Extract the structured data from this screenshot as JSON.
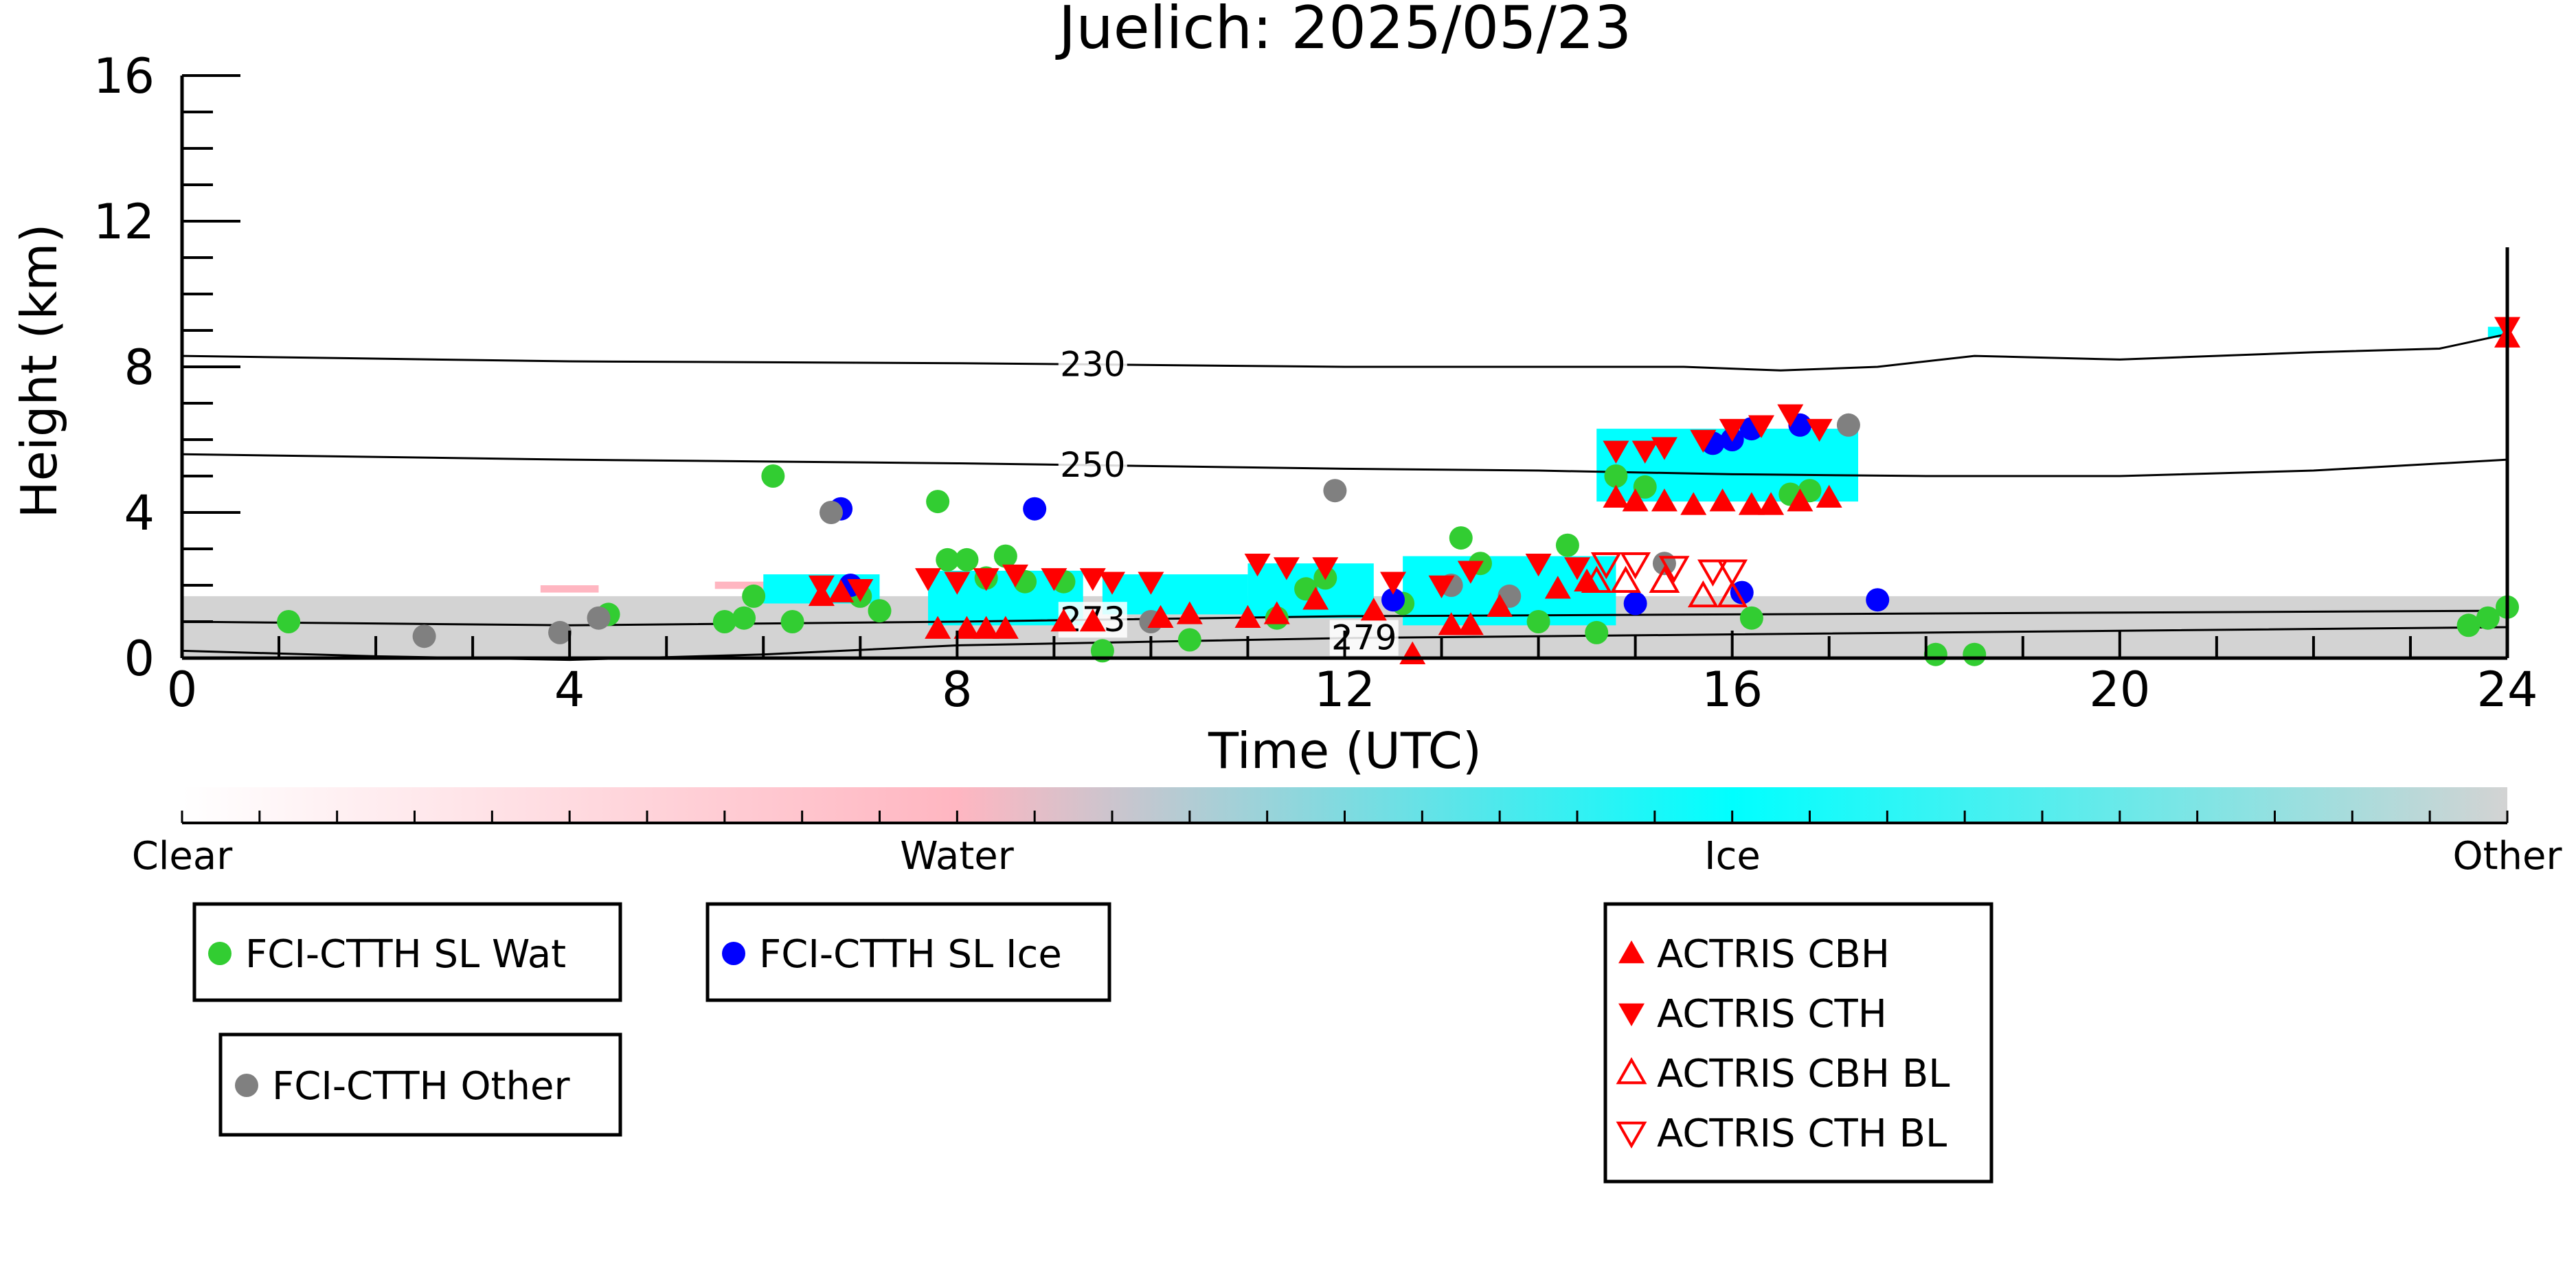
{
  "chart_data": {
    "type": "scatter",
    "title": "Juelich: 2025/05/23",
    "xlabel": "Time (UTC)",
    "ylabel": "Height (km)",
    "xlim": [
      0,
      24
    ],
    "ylim": [
      0,
      16
    ],
    "xticks": [
      0,
      4,
      8,
      12,
      16,
      20,
      24
    ],
    "yticks": [
      0,
      4,
      8,
      12,
      16
    ],
    "background_cloud_phase": {
      "other_regions": [
        [
          0,
          0,
          24,
          1.7
        ]
      ],
      "water_regions": [
        [
          3.7,
          1.8,
          4.3,
          2.0
        ],
        [
          5.5,
          1.9,
          6.2,
          2.1
        ],
        [
          13.9,
          2.2,
          14.8,
          2.6
        ]
      ],
      "ice_regions": [
        [
          6.0,
          1.5,
          7.2,
          2.3
        ],
        [
          7.7,
          0.9,
          9.3,
          2.4
        ],
        [
          9.5,
          1.2,
          11.0,
          2.3
        ],
        [
          11.0,
          1.1,
          12.3,
          2.6
        ],
        [
          12.6,
          0.9,
          14.8,
          2.8
        ],
        [
          14.6,
          4.3,
          17.3,
          6.3
        ],
        [
          23.8,
          8.8,
          24.0,
          9.1
        ]
      ]
    },
    "temperature_contours": [
      {
        "label": "230",
        "x": [
          0,
          4,
          8,
          12,
          14,
          15.5,
          16.5,
          17.5,
          18.5,
          20,
          22,
          23.3,
          24
        ],
        "y": [
          8.3,
          8.15,
          8.1,
          8.0,
          8.0,
          8.0,
          7.9,
          8.0,
          8.3,
          8.2,
          8.4,
          8.5,
          8.9
        ],
        "label_x": 9.4
      },
      {
        "label": "250",
        "x": [
          0,
          4,
          8,
          12,
          14,
          16,
          18,
          20,
          22,
          24
        ],
        "y": [
          5.6,
          5.45,
          5.35,
          5.2,
          5.15,
          5.05,
          5.0,
          5.0,
          5.15,
          5.45
        ],
        "label_x": 9.4
      },
      {
        "label": "273",
        "x": [
          0,
          4,
          8,
          12,
          16,
          20,
          24
        ],
        "y": [
          1.0,
          0.9,
          1.0,
          1.15,
          1.2,
          1.25,
          1.3
        ],
        "label_x": 9.4
      },
      {
        "label": "279",
        "x": [
          0,
          2,
          4,
          6,
          8,
          10,
          12,
          16,
          20,
          24
        ],
        "y": [
          0.2,
          0.05,
          -0.05,
          0.1,
          0.35,
          0.45,
          0.55,
          0.65,
          0.75,
          0.85
        ],
        "label_x": 12.2
      }
    ],
    "colorbar": {
      "labels": [
        "Clear",
        "Water",
        "Ice",
        "Other"
      ],
      "label_positions": [
        0,
        8,
        16,
        24
      ],
      "colors": [
        "#ffffff",
        "#ffb6c1",
        "#00ffff",
        "#d3d3d3"
      ]
    },
    "series": [
      {
        "name": "FCI-CTTH SL Wat",
        "marker": "circle",
        "color": "#32cd32",
        "x": [
          1.1,
          4.4,
          5.6,
          5.8,
          5.9,
          6.1,
          6.3,
          7.0,
          7.2,
          7.8,
          7.9,
          8.1,
          8.3,
          8.5,
          8.7,
          9.1,
          9.5,
          10.4,
          11.3,
          11.6,
          11.8,
          12.6,
          13.2,
          13.4,
          14.0,
          14.3,
          14.6,
          14.8,
          15.1,
          15.8,
          16.2,
          16.6,
          16.8,
          18.1,
          18.5,
          23.6,
          23.8,
          24.0
        ],
        "y": [
          1.0,
          1.2,
          1.0,
          1.1,
          1.7,
          5.0,
          1.0,
          1.7,
          1.3,
          4.3,
          2.7,
          2.7,
          2.2,
          2.8,
          2.1,
          2.1,
          0.2,
          0.5,
          1.1,
          1.9,
          2.2,
          1.5,
          3.3,
          2.6,
          1.0,
          3.1,
          0.7,
          5.0,
          4.7,
          5.9,
          1.1,
          4.5,
          4.6,
          0.1,
          0.1,
          0.9,
          1.1,
          1.4
        ]
      },
      {
        "name": "FCI-CTTH SL Ice",
        "marker": "circle",
        "color": "#0000ff",
        "x": [
          6.8,
          6.9,
          8.8,
          12.5,
          15.0,
          15.8,
          16.0,
          16.2,
          16.7,
          16.1,
          17.5
        ],
        "y": [
          4.1,
          2.0,
          4.1,
          1.6,
          1.5,
          5.9,
          6.0,
          6.3,
          6.4,
          1.8,
          1.6
        ]
      },
      {
        "name": "FCI-CTTH Other",
        "marker": "circle",
        "color": "#808080",
        "x": [
          2.5,
          3.9,
          4.3,
          6.7,
          10.0,
          11.9,
          13.1,
          13.7,
          15.3,
          17.2
        ],
        "y": [
          0.6,
          0.7,
          1.1,
          4.0,
          1.0,
          4.6,
          2.0,
          1.7,
          2.6,
          6.4
        ]
      },
      {
        "name": "ACTRIS CBH",
        "marker": "triangle-up",
        "color": "#ff0000",
        "x": [
          6.6,
          6.8,
          7.8,
          8.1,
          8.3,
          8.5,
          9.1,
          9.4,
          10.1,
          10.4,
          11.0,
          11.3,
          11.7,
          12.3,
          12.7,
          13.1,
          13.3,
          13.6,
          14.2,
          14.5,
          14.8,
          15.0,
          15.3,
          15.6,
          15.9,
          16.2,
          16.4,
          16.7,
          17.0,
          24.0
        ],
        "y": [
          1.7,
          1.8,
          0.8,
          0.8,
          0.8,
          0.8,
          1.0,
          1.0,
          1.1,
          1.2,
          1.1,
          1.2,
          1.6,
          1.3,
          0.1,
          0.9,
          0.9,
          1.4,
          1.9,
          2.1,
          4.4,
          4.3,
          4.3,
          4.2,
          4.3,
          4.2,
          4.2,
          4.3,
          4.4,
          8.8
        ]
      },
      {
        "name": "ACTRIS CTH",
        "marker": "triangle-down",
        "color": "#ff0000",
        "x": [
          6.6,
          7.0,
          7.7,
          8.0,
          8.3,
          8.6,
          9.0,
          9.4,
          9.6,
          10.0,
          11.1,
          11.4,
          11.8,
          12.5,
          13.0,
          13.3,
          14.0,
          14.4,
          14.8,
          15.1,
          15.3,
          15.7,
          16.0,
          16.3,
          16.6,
          16.9,
          24.0
        ],
        "y": [
          2.0,
          1.9,
          2.2,
          2.1,
          2.2,
          2.3,
          2.2,
          2.2,
          2.1,
          2.1,
          2.6,
          2.5,
          2.5,
          2.1,
          2.0,
          2.4,
          2.6,
          2.5,
          5.7,
          5.7,
          5.8,
          6.0,
          6.3,
          6.4,
          6.7,
          6.3,
          9.1
        ]
      },
      {
        "name": "ACTRIS CBH BL",
        "marker": "triangle-up-open",
        "color": "#ff0000",
        "x": [
          14.6,
          14.9,
          15.3,
          15.7,
          16.0
        ],
        "y": [
          2.1,
          2.1,
          2.1,
          1.7,
          1.7
        ]
      },
      {
        "name": "ACTRIS CTH BL",
        "marker": "triangle-down-open",
        "color": "#ff0000",
        "x": [
          14.7,
          15.0,
          15.4,
          15.8,
          16.0
        ],
        "y": [
          2.6,
          2.6,
          2.5,
          2.4,
          2.4
        ]
      }
    ]
  }
}
